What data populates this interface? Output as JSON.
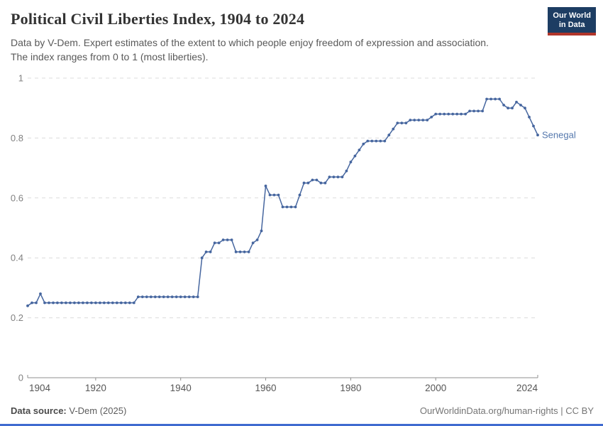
{
  "header": {
    "title": "Political Civil Liberties Index, 1904 to 2024",
    "subtitle_line1": "Data by V-Dem. Expert estimates of the extent to which people enjoy freedom of expression and association.",
    "subtitle_line2": "The index ranges from 0 to 1 (most liberties).",
    "logo": {
      "line1": "Our World",
      "line2": "in Data"
    }
  },
  "footer": {
    "source_label": "Data source:",
    "source_value": " V-Dem (2025)",
    "rights": "OurWorldinData.org/human-rights | CC BY"
  },
  "colors": {
    "line": "#46669f",
    "entity_label": "#5578ad",
    "grid": "#dcdcdc",
    "axis": "#8f8f8f",
    "x_tick_label": "#565656",
    "y_tick_label": "#818181",
    "logo_bg": "#1d3d63",
    "logo_stripe": "#b0352a",
    "bottom_bar": "#3f6bd0"
  },
  "chart_data": {
    "type": "line",
    "title": "Political Civil Liberties Index, 1904 to 2024",
    "xlabel": "",
    "ylabel": "",
    "xlim": [
      1904,
      2024
    ],
    "ylim": [
      0,
      1
    ],
    "grid": "horizontal-dashed",
    "legend_position": "end-of-line-label",
    "xticks": [
      1904,
      1920,
      1940,
      1960,
      1980,
      2000,
      2024
    ],
    "ytick_values": [
      0,
      0.2,
      0.4,
      0.6,
      0.8,
      1
    ],
    "ytick_labels": [
      "0",
      "0.2",
      "0.4",
      "0.6",
      "0.8",
      "1"
    ],
    "entity_label": "Senegal",
    "series": [
      {
        "name": "Senegal",
        "years": [
          1904,
          1905,
          1906,
          1907,
          1908,
          1909,
          1910,
          1911,
          1912,
          1913,
          1914,
          1915,
          1916,
          1917,
          1918,
          1919,
          1920,
          1921,
          1922,
          1923,
          1924,
          1925,
          1926,
          1927,
          1928,
          1929,
          1930,
          1931,
          1932,
          1933,
          1934,
          1935,
          1936,
          1937,
          1938,
          1939,
          1940,
          1941,
          1942,
          1943,
          1944,
          1945,
          1946,
          1947,
          1948,
          1949,
          1950,
          1951,
          1952,
          1953,
          1954,
          1955,
          1956,
          1957,
          1958,
          1959,
          1960,
          1961,
          1962,
          1963,
          1964,
          1965,
          1966,
          1967,
          1968,
          1969,
          1970,
          1971,
          1972,
          1973,
          1974,
          1975,
          1976,
          1977,
          1978,
          1979,
          1980,
          1981,
          1982,
          1983,
          1984,
          1985,
          1986,
          1987,
          1988,
          1989,
          1990,
          1991,
          1992,
          1993,
          1994,
          1995,
          1996,
          1997,
          1998,
          1999,
          2000,
          2001,
          2002,
          2003,
          2004,
          2005,
          2006,
          2007,
          2008,
          2009,
          2010,
          2011,
          2012,
          2013,
          2014,
          2015,
          2016,
          2017,
          2018,
          2019,
          2020,
          2021,
          2022,
          2023,
          2024
        ],
        "values": [
          0.24,
          0.25,
          0.25,
          0.28,
          0.25,
          0.25,
          0.25,
          0.25,
          0.25,
          0.25,
          0.25,
          0.25,
          0.25,
          0.25,
          0.25,
          0.25,
          0.25,
          0.25,
          0.25,
          0.25,
          0.25,
          0.25,
          0.25,
          0.25,
          0.25,
          0.25,
          0.27,
          0.27,
          0.27,
          0.27,
          0.27,
          0.27,
          0.27,
          0.27,
          0.27,
          0.27,
          0.27,
          0.27,
          0.27,
          0.27,
          0.27,
          0.4,
          0.42,
          0.42,
          0.45,
          0.45,
          0.46,
          0.46,
          0.46,
          0.42,
          0.42,
          0.42,
          0.42,
          0.45,
          0.46,
          0.49,
          0.64,
          0.61,
          0.61,
          0.61,
          0.57,
          0.57,
          0.57,
          0.57,
          0.61,
          0.65,
          0.65,
          0.66,
          0.66,
          0.65,
          0.65,
          0.67,
          0.67,
          0.67,
          0.67,
          0.69,
          0.72,
          0.74,
          0.76,
          0.78,
          0.79,
          0.79,
          0.79,
          0.79,
          0.79,
          0.81,
          0.83,
          0.85,
          0.85,
          0.85,
          0.86,
          0.86,
          0.86,
          0.86,
          0.86,
          0.87,
          0.88,
          0.88,
          0.88,
          0.88,
          0.88,
          0.88,
          0.88,
          0.88,
          0.89,
          0.89,
          0.89,
          0.89,
          0.93,
          0.93,
          0.93,
          0.93,
          0.91,
          0.9,
          0.9,
          0.92,
          0.91,
          0.9,
          0.87,
          0.84,
          0.81
        ]
      }
    ]
  }
}
